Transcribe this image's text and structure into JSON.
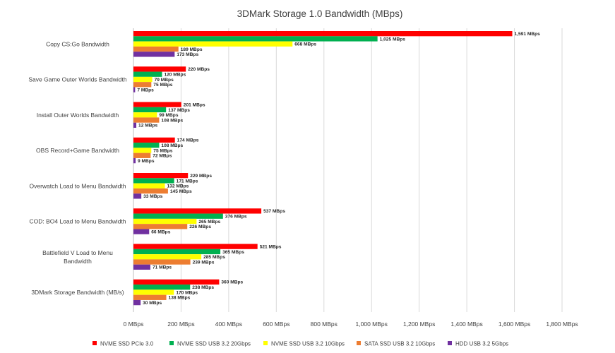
{
  "chart_data": {
    "type": "bar",
    "orientation": "horizontal",
    "title": "3DMark Storage 1.0 Bandwidth (MBps)",
    "xlabel": "",
    "ylabel": "",
    "xlim": [
      0,
      1800
    ],
    "xtick_step": 200,
    "value_suffix": " MBps",
    "tick_labels": [
      "0 MBps",
      "200 MBps",
      "400 MBps",
      "600 MBps",
      "800 MBps",
      "1,000 MBps",
      "1,200 MBps",
      "1,400 MBps",
      "1,600 MBps",
      "1,800 MBps"
    ],
    "grid": true,
    "legend_position": "bottom",
    "categories": [
      "Copy CS:Go Bandwidth",
      "Save Game Outer Worlds Bandwidth",
      "Install Outer Worlds Bandwidth",
      "OBS Record+Game Bandwidth",
      "Overwatch  Load to Menu Bandwidth",
      "COD: BO4  Load to Menu  Bandwidth",
      "Battlefield V Load to Menu Bandwidth",
      "3DMark Storage Bandwidth (MB/s)"
    ],
    "series": [
      {
        "name": "NVME SSD PCIe 3.0",
        "color": "#ff0000",
        "values": [
          1591,
          220,
          201,
          174,
          229,
          537,
          521,
          360
        ]
      },
      {
        "name": "NVME SSD USB 3.2 20Gbps",
        "color": "#00b050",
        "values": [
          1025,
          120,
          137,
          108,
          171,
          376,
          365,
          238
        ]
      },
      {
        "name": "NVME SSD USB 3.2 10Gbps",
        "color": "#ffff00",
        "values": [
          668,
          79,
          99,
          75,
          132,
          265,
          285,
          170
        ]
      },
      {
        "name": "SATA SSD USB 3.2 10Gbps",
        "color": "#ed7d31",
        "values": [
          189,
          75,
          108,
          72,
          145,
          226,
          239,
          138
        ]
      },
      {
        "name": "HDD USB 3.2 5Gbps",
        "color": "#7030a0",
        "values": [
          173,
          7,
          12,
          9,
          33,
          66,
          71,
          30
        ]
      }
    ]
  }
}
